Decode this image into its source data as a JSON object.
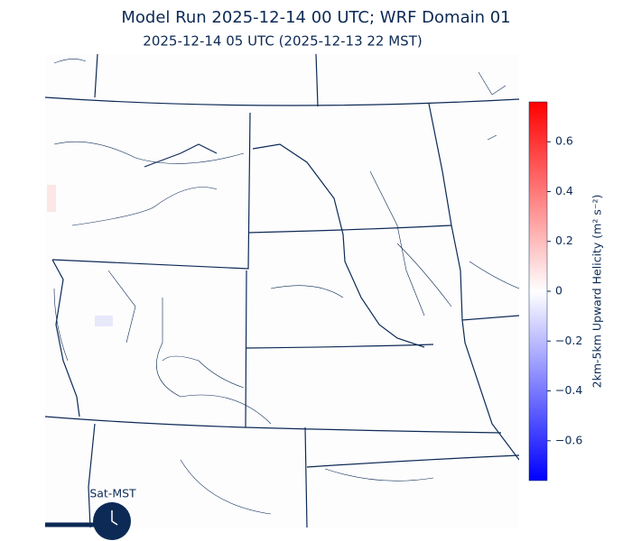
{
  "header": {
    "title": "Model Run 2025-12-14 00 UTC; WRF Domain 01",
    "subtitle": "2025-12-14 05 UTC  (2025-12-13 22 MST)"
  },
  "colorbar": {
    "label": "2km-5km Upward Helicity (m² s⁻²)",
    "lim": [
      -0.76,
      0.76
    ],
    "ticks": [
      {
        "value": -0.6,
        "label": "−0.6"
      },
      {
        "value": -0.4,
        "label": "−0.4"
      },
      {
        "value": -0.2,
        "label": "−0.2"
      },
      0.0,
      0.2,
      0.4,
      0.6
    ],
    "colors": [
      "#0000ff",
      "#ffffff",
      "#ff0000"
    ]
  },
  "clock": {
    "label": "Sat-MST"
  }
}
